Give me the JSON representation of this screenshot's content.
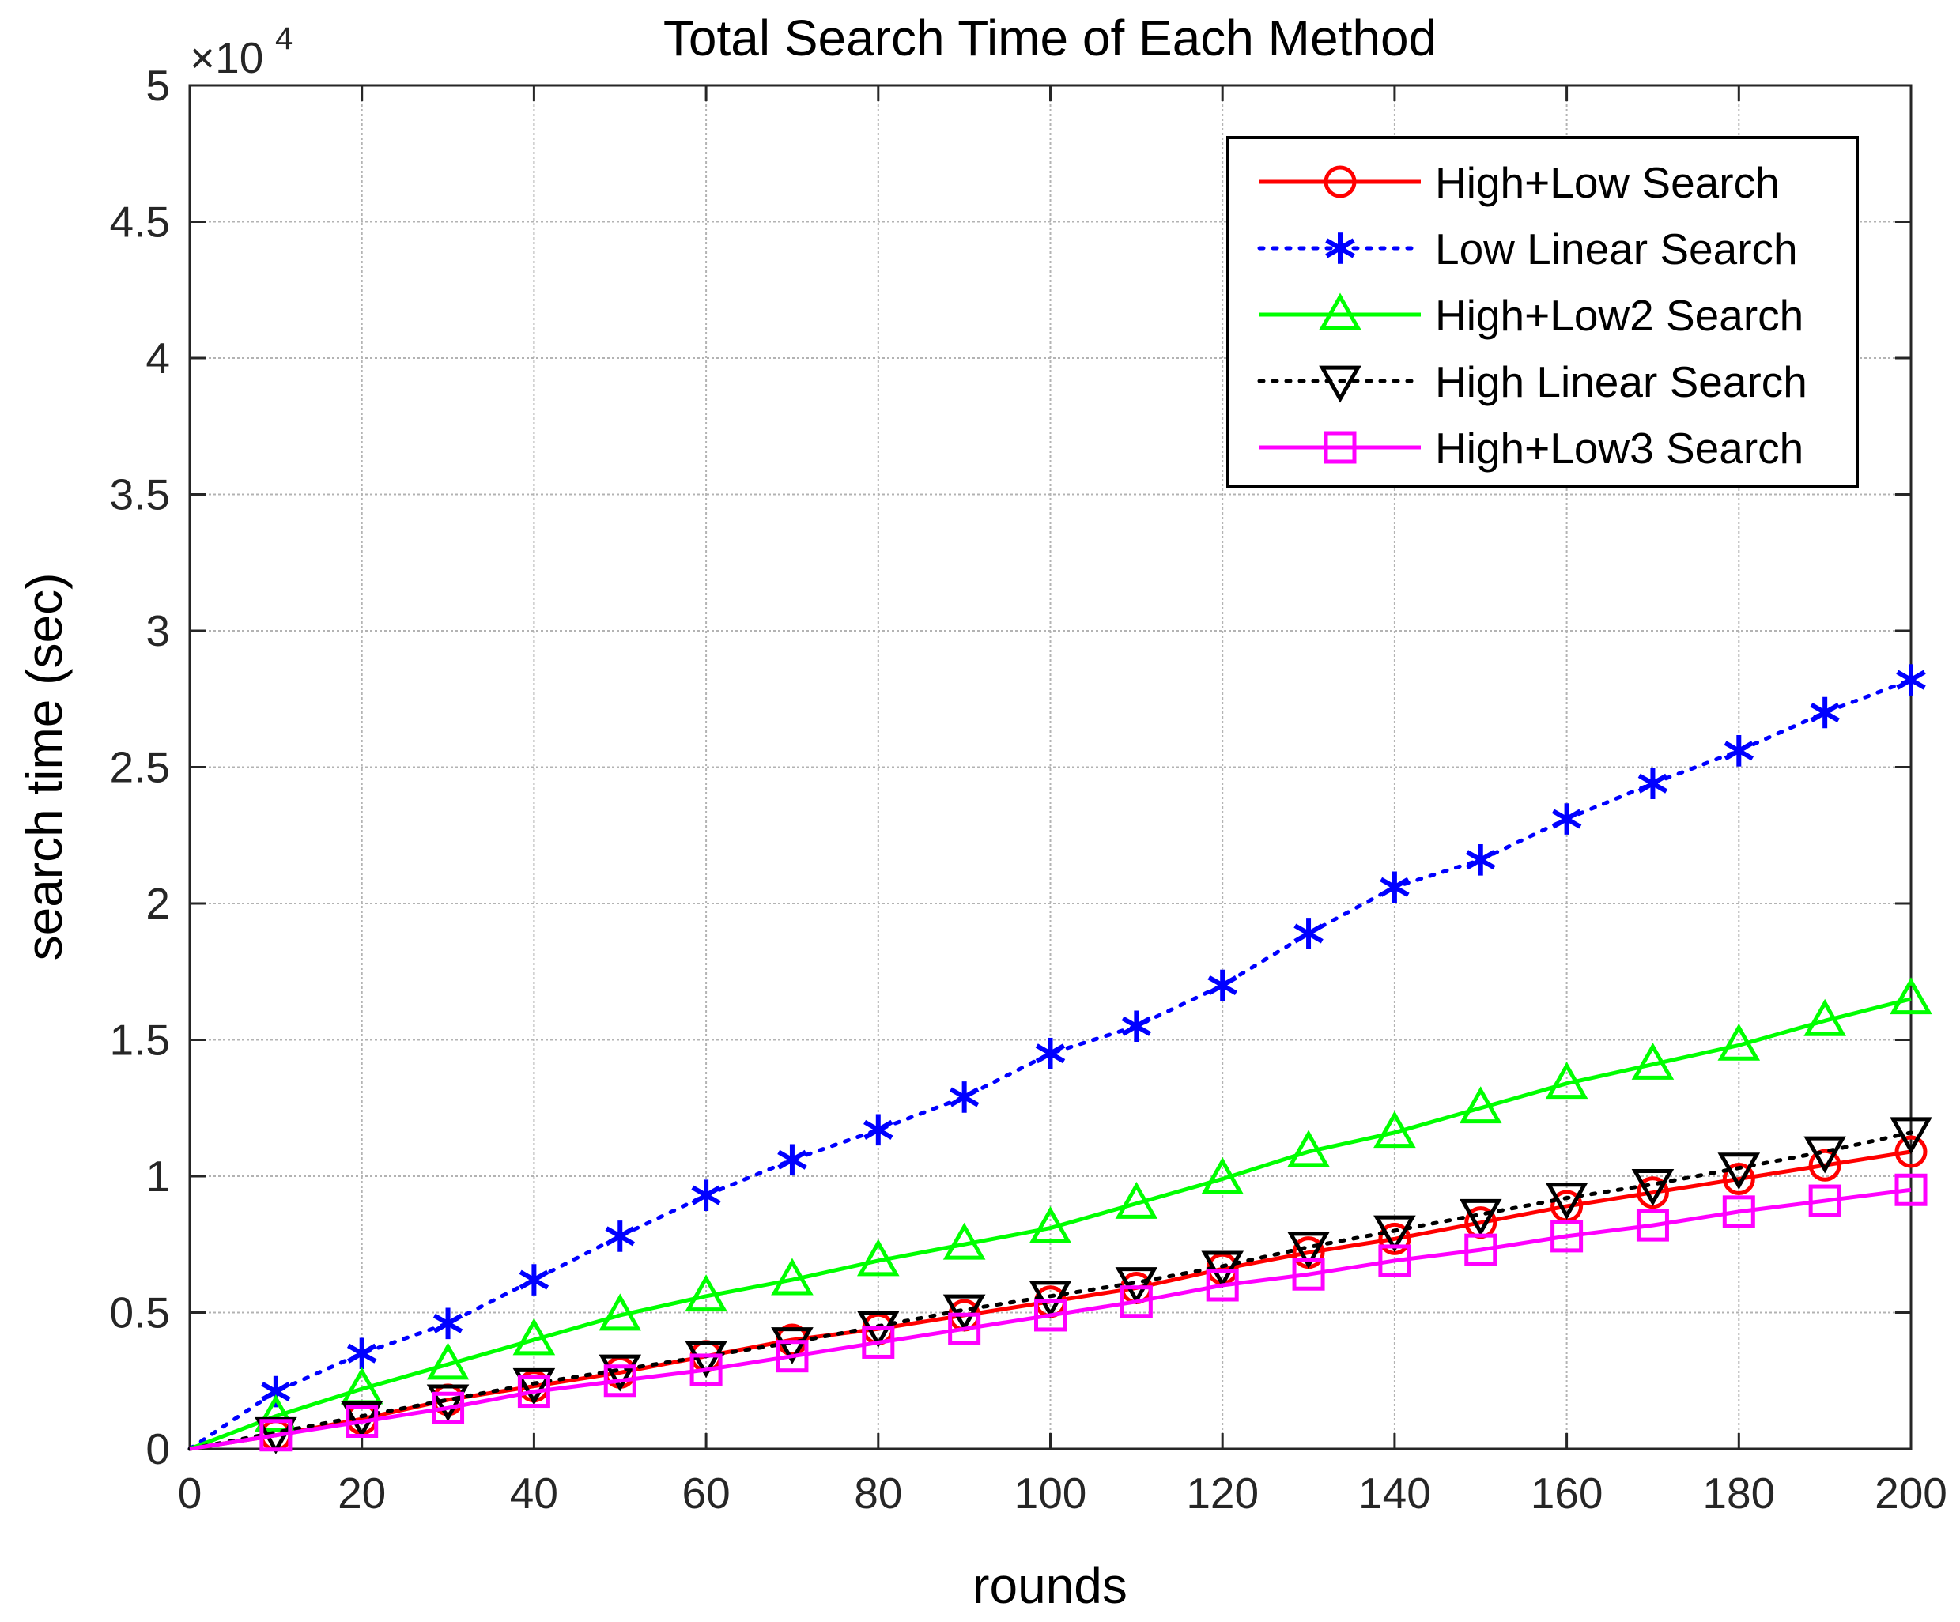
{
  "chart_data": {
    "type": "line",
    "title": "Total Search Time of Each Method",
    "xlabel": "rounds",
    "ylabel": "search time (sec)",
    "y_exponent_label": "×10",
    "y_exponent_power": "4",
    "xlim": [
      0,
      200
    ],
    "ylim": [
      0,
      5
    ],
    "xticks": [
      0,
      20,
      40,
      60,
      80,
      100,
      120,
      140,
      160,
      180,
      200
    ],
    "xtick_labels": [
      "0",
      "20",
      "40",
      "60",
      "80",
      "100",
      "120",
      "140",
      "160",
      "180",
      "200"
    ],
    "yticks": [
      0,
      0.5,
      1,
      1.5,
      2,
      2.5,
      3,
      3.5,
      4,
      4.5,
      5
    ],
    "ytick_labels": [
      "0",
      "0.5",
      "1",
      "1.5",
      "2",
      "2.5",
      "3",
      "3.5",
      "4",
      "4.5",
      "5"
    ],
    "grid": true,
    "legend_position": "top-right",
    "x": [
      0,
      10,
      20,
      30,
      40,
      50,
      60,
      70,
      80,
      90,
      100,
      110,
      120,
      130,
      140,
      150,
      160,
      170,
      180,
      190,
      200
    ],
    "series": [
      {
        "name": "High+Low Search",
        "color": "#ff0000",
        "line": "solid",
        "marker": "circle",
        "values": [
          0,
          0.05,
          0.11,
          0.18,
          0.23,
          0.28,
          0.34,
          0.4,
          0.44,
          0.49,
          0.54,
          0.59,
          0.66,
          0.72,
          0.77,
          0.83,
          0.89,
          0.94,
          0.99,
          1.04,
          1.09
        ]
      },
      {
        "name": "Low Linear Search",
        "color": "#0000ff",
        "line": "dotted",
        "marker": "asterisk",
        "values": [
          0,
          0.21,
          0.35,
          0.46,
          0.62,
          0.78,
          0.93,
          1.06,
          1.17,
          1.29,
          1.45,
          1.55,
          1.7,
          1.89,
          2.06,
          2.16,
          2.31,
          2.44,
          2.56,
          2.7,
          2.82
        ]
      },
      {
        "name": "High+Low2 Search",
        "color": "#00ff00",
        "line": "solid",
        "marker": "triangle-up",
        "values": [
          0,
          0.12,
          0.22,
          0.31,
          0.4,
          0.49,
          0.56,
          0.62,
          0.69,
          0.75,
          0.81,
          0.9,
          0.99,
          1.09,
          1.16,
          1.25,
          1.34,
          1.41,
          1.48,
          1.57,
          1.65
        ]
      },
      {
        "name": "High Linear Search",
        "color": "#000000",
        "line": "dotted",
        "marker": "triangle-down",
        "values": [
          0,
          0.06,
          0.12,
          0.18,
          0.24,
          0.29,
          0.34,
          0.39,
          0.45,
          0.51,
          0.56,
          0.61,
          0.67,
          0.74,
          0.8,
          0.86,
          0.92,
          0.97,
          1.03,
          1.09,
          1.16
        ]
      },
      {
        "name": "High+Low3 Search",
        "color": "#ff00ff",
        "line": "solid",
        "marker": "square",
        "values": [
          0,
          0.05,
          0.1,
          0.15,
          0.21,
          0.25,
          0.29,
          0.34,
          0.39,
          0.44,
          0.49,
          0.54,
          0.6,
          0.64,
          0.69,
          0.73,
          0.78,
          0.82,
          0.87,
          0.91,
          0.95
        ]
      }
    ]
  }
}
